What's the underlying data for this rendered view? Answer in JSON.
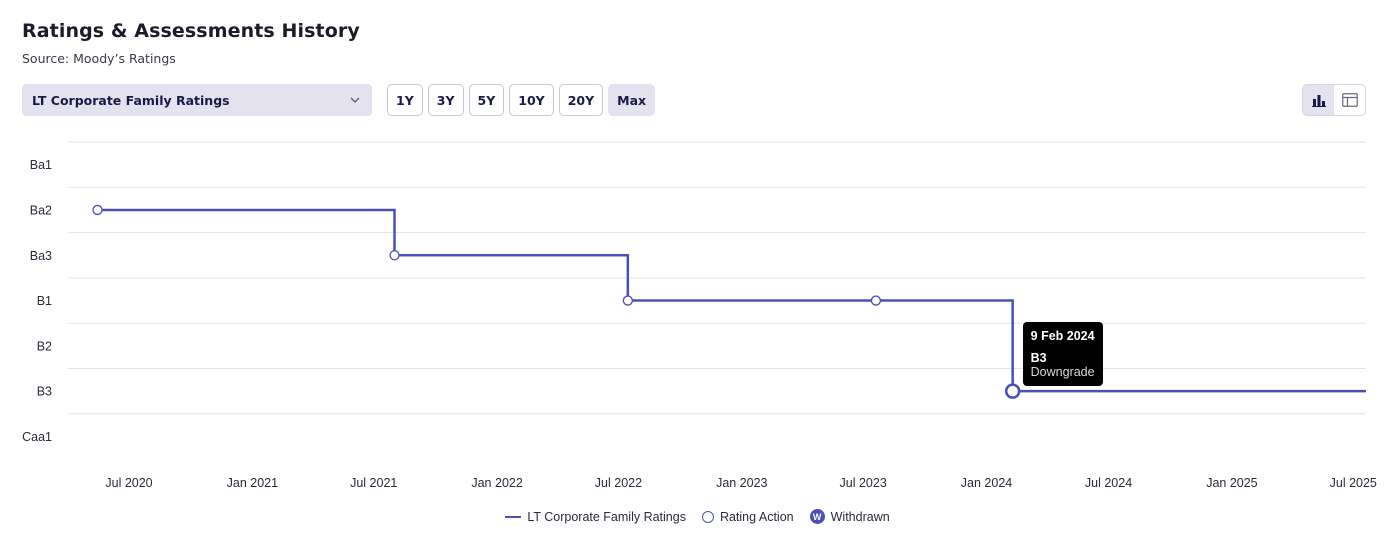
{
  "header": {
    "title": "Ratings & Assessments History",
    "source": "Source: Moody’s Ratings"
  },
  "controls": {
    "rating_type_selected": "LT Corporate Family Ratings",
    "ranges": [
      "1Y",
      "3Y",
      "5Y",
      "10Y",
      "20Y",
      "Max"
    ],
    "active_range": "Max",
    "view_toggle": [
      {
        "icon": "bar-chart-icon",
        "active": true
      },
      {
        "icon": "table-icon",
        "active": false
      }
    ]
  },
  "chart_data": {
    "type": "line",
    "step": true,
    "y_categories": [
      "Ba1",
      "Ba2",
      "Ba3",
      "B1",
      "B2",
      "B3",
      "Caa1"
    ],
    "x_ticks": [
      "Jul 2020",
      "Jan 2021",
      "Jul 2021",
      "Jan 2022",
      "Jul 2022",
      "Jan 2023",
      "Jul 2023",
      "Jan 2024",
      "Jul 2024",
      "Jan 2025",
      "Jul 2025"
    ],
    "series": [
      {
        "name": "LT Corporate Family Ratings",
        "color": "#4b50b8",
        "points": [
          {
            "x": "2020-05-15",
            "y": "Ba2"
          },
          {
            "x": "2021-08-01",
            "y": "Ba3"
          },
          {
            "x": "2022-07-15",
            "y": "B1"
          },
          {
            "x": "2023-07-20",
            "y": "B1"
          },
          {
            "x": "2024-02-09",
            "y": "B3"
          }
        ],
        "end_date": "2025-07-20"
      }
    ],
    "grid": true,
    "legend_position": "bottom-center",
    "legend": [
      "LT Corporate Family Ratings",
      "Rating Action",
      "Withdrawn"
    ],
    "tooltip": {
      "date": "9 Feb 2024",
      "rating": "B3",
      "action": "Downgrade"
    }
  },
  "legend_withdrawn_glyph": "W"
}
